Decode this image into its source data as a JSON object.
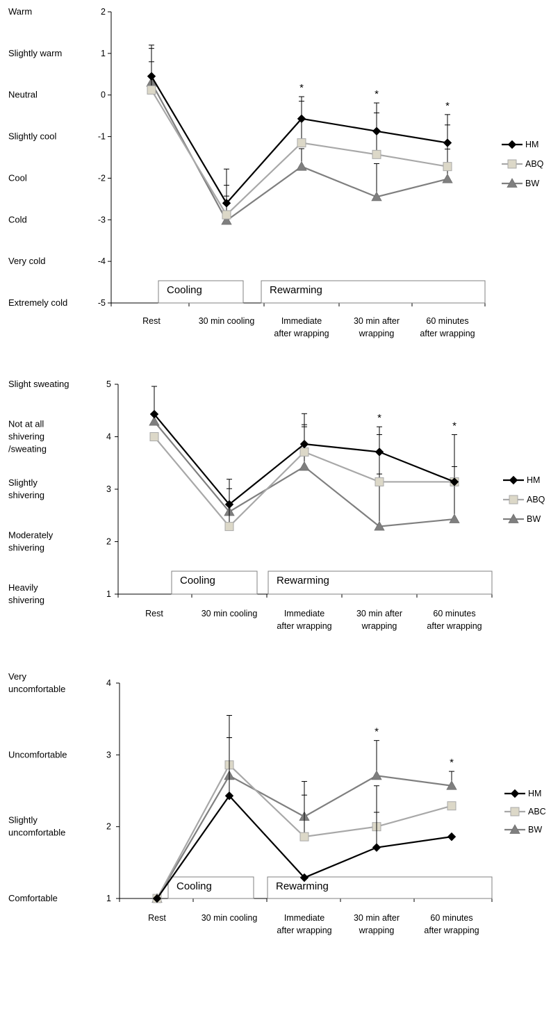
{
  "chart_data": [
    {
      "type": "line",
      "xlabels": [
        [
          "Rest"
        ],
        [
          "30 min cooling"
        ],
        [
          "Immediate",
          "after wrapping"
        ],
        [
          "30 min after",
          "wrapping"
        ],
        [
          "60 minutes",
          "after wrapping"
        ]
      ],
      "ylim": [
        -5,
        2
      ],
      "yticks": [
        "-5",
        "-4",
        "-3",
        "-2",
        "-1",
        "0",
        "1",
        "2"
      ],
      "scale_labels": [
        {
          "lines": [
            "Warm"
          ],
          "value": 2
        },
        {
          "lines": [
            "Slightly warm"
          ],
          "value": 1
        },
        {
          "lines": [
            "Neutral"
          ],
          "value": 0
        },
        {
          "lines": [
            "Slightly cool"
          ],
          "value": -1
        },
        {
          "lines": [
            "Cool"
          ],
          "value": -2
        },
        {
          "lines": [
            "Cold"
          ],
          "value": -3
        },
        {
          "lines": [
            "Very cold"
          ],
          "value": -4
        },
        {
          "lines": [
            "Extremely cold"
          ],
          "value": -5
        }
      ],
      "phases": [
        "Cooling",
        "Rewarming"
      ],
      "legend_position": "right",
      "series": [
        {
          "name": "HM",
          "values": [
            0.45,
            -2.6,
            -0.57,
            -0.87,
            -1.15
          ],
          "error_bar": [
            0.75,
            0.82,
            0.53,
            0.68,
            0.68
          ],
          "color": "#000000",
          "marker": "diamond"
        },
        {
          "name": "ABQ",
          "values": [
            0.12,
            -2.88,
            -1.15,
            -1.43,
            -1.72
          ],
          "error_bar": [
            1.0,
            0.45,
            1.0,
            1.0,
            1.0
          ],
          "color": "#a8a8a8",
          "marker": "square"
        },
        {
          "name": "BW",
          "values": [
            0.3,
            -3.02,
            -1.72,
            -2.45,
            -2.02
          ],
          "error_bar": [
            0.5,
            0.85,
            0.43,
            0.8,
            0.72
          ],
          "color": "#7f7f7f",
          "marker": "triangle"
        }
      ],
      "significance": [
        "",
        "",
        "*",
        "*",
        "*"
      ]
    },
    {
      "type": "line",
      "xlabels": [
        [
          "Rest"
        ],
        [
          "30 min cooling"
        ],
        [
          "Immediate",
          "after wrapping"
        ],
        [
          "30 min after",
          "wrapping"
        ],
        [
          "60 minutes",
          "after wrapping"
        ]
      ],
      "ylim": [
        1,
        5
      ],
      "yticks": [
        "1",
        "2",
        "3",
        "4",
        "5"
      ],
      "scale_labels": [
        {
          "lines": [
            "Slight sweating"
          ],
          "value": 5
        },
        {
          "lines": [
            "Not at all",
            "shivering",
            "/sweating"
          ],
          "value": 4
        },
        {
          "lines": [
            "Slightly",
            "shivering"
          ],
          "value": 3
        },
        {
          "lines": [
            "Moderately",
            "shivering"
          ],
          "value": 2
        },
        {
          "lines": [
            "Heavily",
            "shivering"
          ],
          "value": 1
        }
      ],
      "phases": [
        "Cooling",
        "Rewarming"
      ],
      "legend_position": "right",
      "series": [
        {
          "name": "HM",
          "values": [
            4.43,
            2.71,
            3.86,
            3.71,
            3.14
          ],
          "error_bar": [
            0.53,
            0.48,
            0.37,
            0.48,
            0.0
          ],
          "color": "#000000",
          "marker": "diamond"
        },
        {
          "name": "ABQ",
          "values": [
            4.0,
            2.29,
            3.71,
            3.14,
            3.14
          ],
          "error_bar": [
            0.0,
            0.72,
            0.48,
            0.9,
            0.9
          ],
          "color": "#a8a8a8",
          "marker": "square"
        },
        {
          "name": "BW",
          "values": [
            4.29,
            2.57,
            3.43,
            2.29,
            2.43
          ],
          "error_bar": [
            0.0,
            0.0,
            1.01,
            1.0,
            1.0
          ],
          "color": "#7f7f7f",
          "marker": "triangle"
        }
      ],
      "significance": [
        "",
        "",
        "",
        "*",
        "*"
      ]
    },
    {
      "type": "line",
      "xlabels": [
        [
          "Rest"
        ],
        [
          "30 min cooling"
        ],
        [
          "Immediate",
          "after wrapping"
        ],
        [
          "30 min after",
          "wrapping"
        ],
        [
          "60 minutes",
          "after wrapping"
        ]
      ],
      "ylim": [
        1,
        4
      ],
      "yticks": [
        "1",
        "2",
        "3",
        "4"
      ],
      "scale_labels": [
        {
          "lines": [
            "Very",
            "uncomfortable"
          ],
          "value": 4
        },
        {
          "lines": [
            "Uncomfortable"
          ],
          "value": 3
        },
        {
          "lines": [
            "Slightly",
            "uncomfortable"
          ],
          "value": 2
        },
        {
          "lines": [
            "Comfortable"
          ],
          "value": 1
        }
      ],
      "phases": [
        "Cooling",
        "Rewarming"
      ],
      "legend_position": "right",
      "series": [
        {
          "name": "HM",
          "values": [
            1.0,
            2.43,
            1.29,
            1.71,
            1.86
          ],
          "error_bar": [
            0.0,
            0.81,
            0.0,
            0.49,
            0.0
          ],
          "color": "#000000",
          "marker": "diamond"
        },
        {
          "name": "ABC",
          "values": [
            1.0,
            2.86,
            1.86,
            2.0,
            2.29
          ],
          "error_bar": [
            0.0,
            0.69,
            0.58,
            0.57,
            0.0
          ],
          "color": "#a8a8a8",
          "marker": "square"
        },
        {
          "name": "BW",
          "values": [
            1.0,
            2.71,
            2.14,
            2.71,
            2.57
          ],
          "error_bar": [
            0.0,
            0.53,
            0.49,
            0.49,
            0.2
          ],
          "color": "#7f7f7f",
          "marker": "triangle"
        }
      ],
      "significance": [
        "",
        "",
        "",
        "*",
        "*"
      ]
    }
  ]
}
